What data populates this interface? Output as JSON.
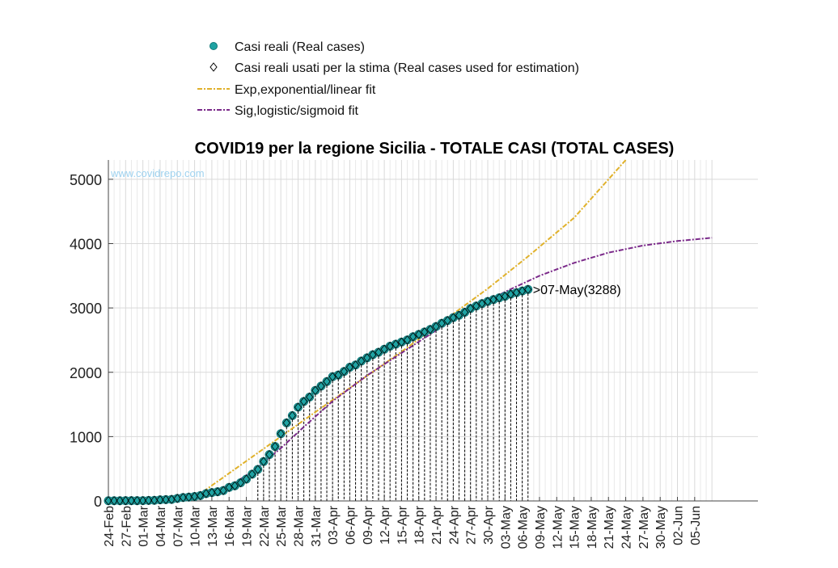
{
  "chart_data": {
    "type": "line",
    "title": "COVID19 per la regione Sicilia - TOTALE CASI (TOTAL CASES)",
    "xlabel": "",
    "ylabel": "",
    "ylim": [
      0,
      5300
    ],
    "xlim": [
      "2020-02-24",
      "2020-06-16"
    ],
    "grid": true,
    "legend_position": "top",
    "watermark": "www.covidrepo.com",
    "yticks": [
      "0",
      "1000",
      "2000",
      "3000",
      "4000",
      "5000"
    ],
    "xticks": [
      "24-Feb",
      "27-Feb",
      "01-Mar",
      "04-Mar",
      "07-Mar",
      "10-Mar",
      "13-Mar",
      "16-Mar",
      "19-Mar",
      "22-Mar",
      "25-Mar",
      "28-Mar",
      "31-Mar",
      "03-Apr",
      "06-Apr",
      "09-Apr",
      "12-Apr",
      "15-Apr",
      "18-Apr",
      "21-Apr",
      "24-Apr",
      "27-Apr",
      "30-Apr",
      "03-May",
      "06-May",
      "09-May",
      "12-May",
      "15-May",
      "18-May",
      "21-May",
      "24-May",
      "27-May",
      "30-May",
      "02-Jun",
      "05-Jun"
    ],
    "annotation": ">07-May(3288)",
    "series": [
      {
        "name": "Casi reali (Real cases)",
        "color": "#1fa3a3",
        "marker": "circle",
        "x": [
          "2020-02-24",
          "2020-02-25",
          "2020-02-26",
          "2020-02-27",
          "2020-02-28",
          "2020-02-29",
          "2020-03-01",
          "2020-03-02",
          "2020-03-03",
          "2020-03-04",
          "2020-03-05",
          "2020-03-06",
          "2020-03-07",
          "2020-03-08",
          "2020-03-09",
          "2020-03-10",
          "2020-03-11",
          "2020-03-12",
          "2020-03-13",
          "2020-03-14",
          "2020-03-15",
          "2020-03-16",
          "2020-03-17",
          "2020-03-18",
          "2020-03-19",
          "2020-03-20",
          "2020-03-21",
          "2020-03-22",
          "2020-03-23",
          "2020-03-24",
          "2020-03-25",
          "2020-03-26",
          "2020-03-27",
          "2020-03-28",
          "2020-03-29",
          "2020-03-30",
          "2020-03-31",
          "2020-04-01",
          "2020-04-02",
          "2020-04-03",
          "2020-04-04",
          "2020-04-05",
          "2020-04-06",
          "2020-04-07",
          "2020-04-08",
          "2020-04-09",
          "2020-04-10",
          "2020-04-11",
          "2020-04-12",
          "2020-04-13",
          "2020-04-14",
          "2020-04-15",
          "2020-04-16",
          "2020-04-17",
          "2020-04-18",
          "2020-04-19",
          "2020-04-20",
          "2020-04-21",
          "2020-04-22",
          "2020-04-23",
          "2020-04-24",
          "2020-04-25",
          "2020-04-26",
          "2020-04-27",
          "2020-04-28",
          "2020-04-29",
          "2020-04-30",
          "2020-05-01",
          "2020-05-02",
          "2020-05-03",
          "2020-05-04",
          "2020-05-05",
          "2020-05-06",
          "2020-05-07"
        ],
        "values": [
          3,
          3,
          3,
          4,
          4,
          4,
          5,
          8,
          9,
          18,
          21,
          24,
          40,
          53,
          60,
          69,
          83,
          115,
          130,
          143,
          162,
          210,
          236,
          282,
          339,
          416,
          490,
          613,
          721,
          846,
          1045,
          1213,
          1327,
          1457,
          1547,
          1615,
          1718,
          1785,
          1856,
          1931,
          1957,
          2013,
          2079,
          2113,
          2174,
          2225,
          2274,
          2311,
          2358,
          2405,
          2436,
          2470,
          2503,
          2553,
          2588,
          2627,
          2665,
          2712,
          2762,
          2804,
          2849,
          2886,
          2933,
          2992,
          3030,
          3068,
          3101,
          3131,
          3157,
          3181,
          3213,
          3238,
          3264,
          3288
        ]
      },
      {
        "name": "Casi reali usati per la stima (Real cases used for estimation)",
        "color": "#000000",
        "marker": "diamond",
        "x_range": [
          "2020-02-24",
          "2020-05-07"
        ],
        "values_ref": "same as Casi reali (Real cases)"
      },
      {
        "name": "Exp,exponential/linear fit",
        "color": "#e0b12a",
        "style": "dash-dot",
        "x": [
          "2020-02-24",
          "2020-03-10",
          "2020-03-31",
          "2020-04-15",
          "2020-04-30",
          "2020-05-07",
          "2020-05-15",
          "2020-05-24"
        ],
        "values": [
          0,
          50,
          1380,
          2320,
          3300,
          3800,
          4400,
          5300
        ]
      },
      {
        "name": "Sig,logistic/sigmoid fit",
        "color": "#7b2a8a",
        "style": "dash-dot",
        "x": [
          "2020-02-24",
          "2020-03-07",
          "2020-03-12",
          "2020-03-17",
          "2020-03-21",
          "2020-03-25",
          "2020-03-29",
          "2020-04-03",
          "2020-04-09",
          "2020-04-15",
          "2020-04-21",
          "2020-04-27",
          "2020-05-03",
          "2020-05-09",
          "2020-05-15",
          "2020-05-21",
          "2020-05-27",
          "2020-06-02",
          "2020-06-08"
        ],
        "values": [
          5,
          30,
          110,
          280,
          520,
          820,
          1150,
          1550,
          1950,
          2300,
          2650,
          2960,
          3250,
          3500,
          3700,
          3860,
          3970,
          4040,
          4090
        ]
      }
    ]
  }
}
